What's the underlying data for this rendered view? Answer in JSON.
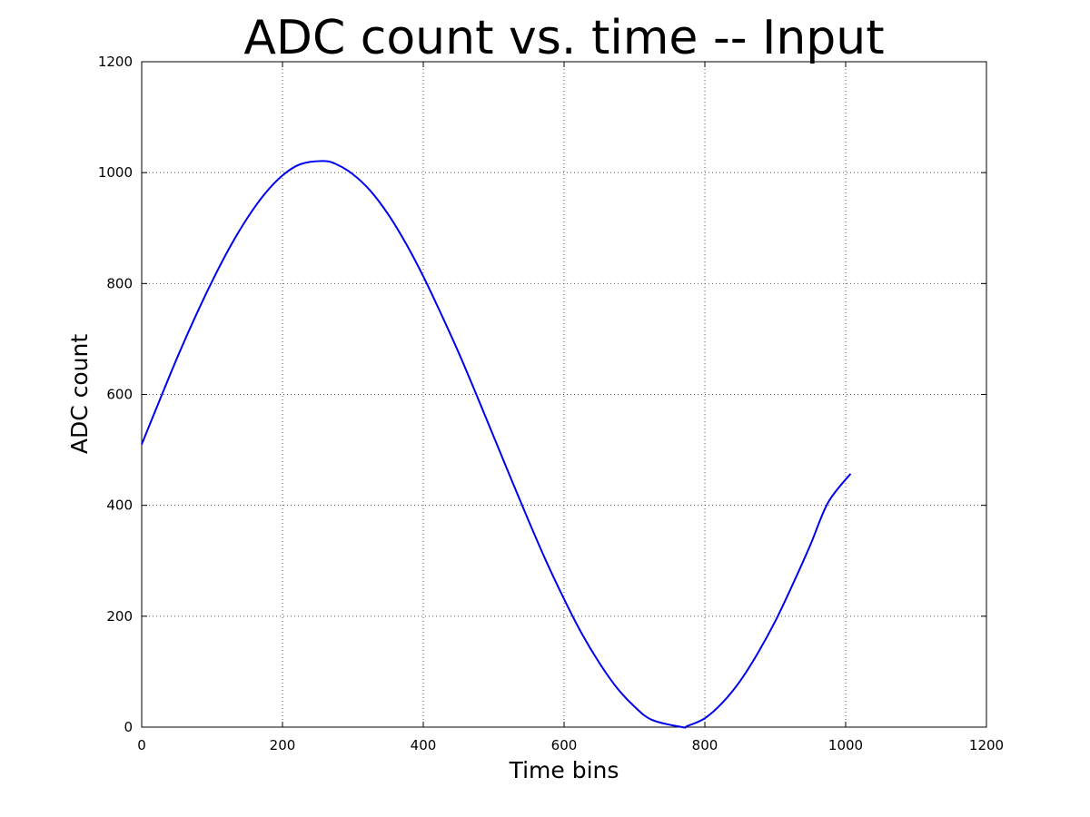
{
  "chart_data": {
    "type": "line",
    "title": "ADC count vs. time -- Input",
    "xlabel": "Time bins",
    "ylabel": "ADC count",
    "xlim": [
      0,
      1200
    ],
    "ylim": [
      0,
      1200
    ],
    "xticks": [
      "0",
      "200",
      "400",
      "600",
      "800",
      "1000",
      "1200"
    ],
    "yticks": [
      "0",
      "200",
      "400",
      "600",
      "800",
      "1000",
      "1200"
    ],
    "grid": true,
    "line_color": "#0000ee",
    "series": [
      {
        "x": [
          0,
          25,
          50,
          75,
          100,
          125,
          150,
          175,
          200,
          225,
          256,
          275,
          300,
          325,
          350,
          375,
          400,
          425,
          450,
          475,
          500,
          525,
          550,
          575,
          600,
          625,
          650,
          675,
          700,
          725,
          768,
          775,
          800,
          825,
          850,
          875,
          900,
          925,
          950,
          975,
          1007
        ],
        "y": [
          510,
          588,
          665,
          737,
          804,
          865,
          918,
          962,
          995,
          1015,
          1021,
          1016,
          997,
          967,
          925,
          873,
          813,
          746,
          676,
          601,
          524,
          447,
          371,
          298,
          231,
          169,
          116,
          71,
          37,
          13,
          0,
          2,
          16,
          44,
          83,
          133,
          191,
          258,
          329,
          405,
          457
        ]
      }
    ]
  }
}
